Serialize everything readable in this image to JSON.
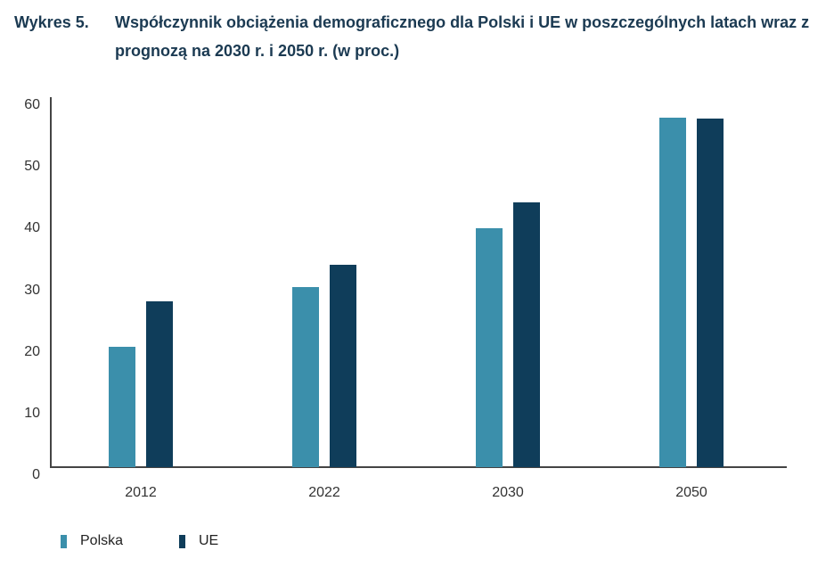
{
  "title": {
    "number": "Wykres 5.",
    "text": "Współczynnik obciążenia demograficznego dla Polski i UE w poszczególnych latach wraz z prognozą na 2030 r. i 2050 r. (w proc.)"
  },
  "colors": {
    "polska": "#3b8fab",
    "ue": "#0f3d5a",
    "title": "#1b3a52"
  },
  "legend": {
    "polska": "Polska",
    "ue": "UE"
  },
  "chart_data": {
    "type": "bar",
    "title": "Współczynnik obciążenia demograficznego dla Polski i UE w poszczególnych latach wraz z prognozą na 2030 r. i 2050 r. (w proc.)",
    "xlabel": "",
    "ylabel": "",
    "categories": [
      "2012",
      "2022",
      "2030",
      "2050"
    ],
    "series": [
      {
        "name": "Polska",
        "color": "#3b8fab",
        "values": [
          20.8,
          30.5,
          40.1,
          58.0
        ]
      },
      {
        "name": "UE",
        "color": "#0f3d5a",
        "values": [
          28.2,
          34.1,
          44.3,
          57.9
        ]
      }
    ],
    "ylim": [
      0,
      60
    ],
    "yticks": [
      "0",
      "10",
      "20",
      "30",
      "40",
      "50",
      "60"
    ],
    "grid": false,
    "legend_position": "bottom-left"
  }
}
